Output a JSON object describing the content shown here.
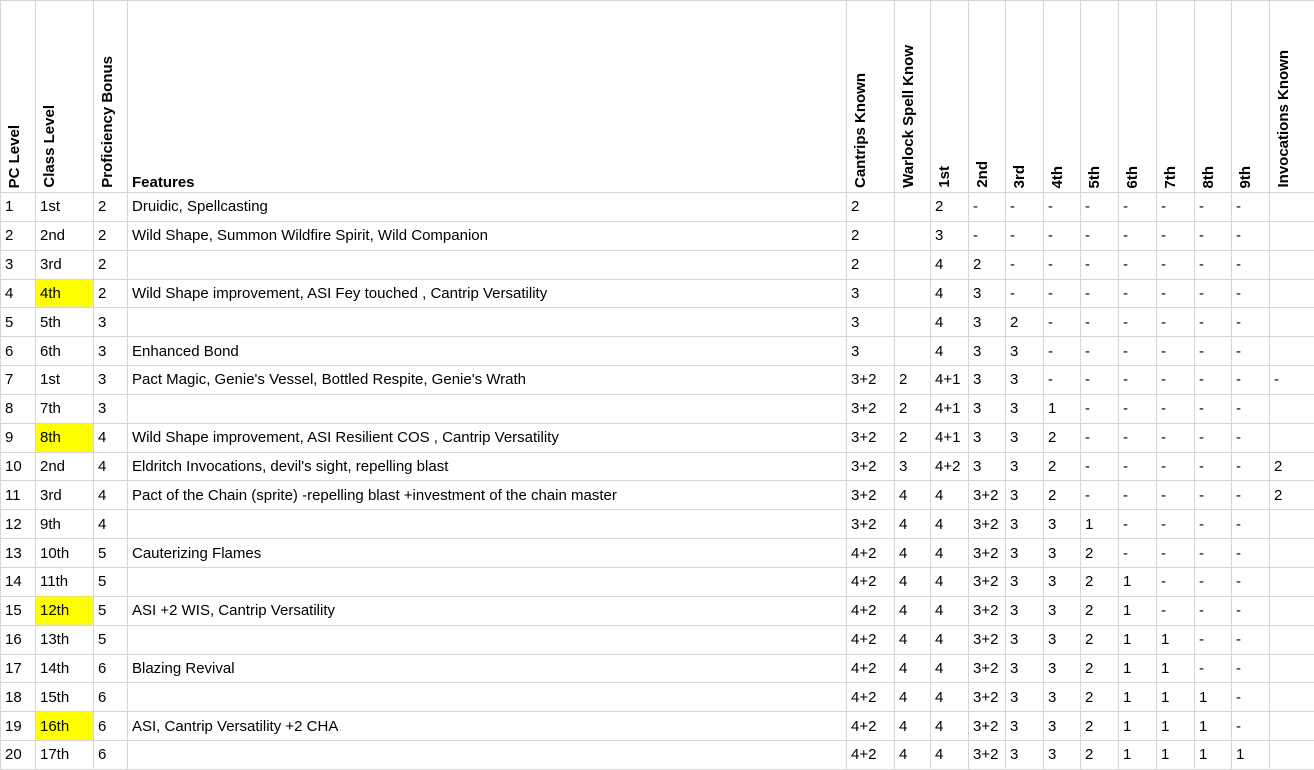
{
  "colors": {
    "highlight": "#ffff00",
    "gridline": "#d6d6d6",
    "text": "#000000",
    "background": "#ffffff"
  },
  "table": {
    "columns": [
      {
        "key": "pc-level",
        "label": "PC Level",
        "vertical": true
      },
      {
        "key": "class-level",
        "label": "Class Level",
        "vertical": true
      },
      {
        "key": "proficiency",
        "label": "Proficiency Bonus",
        "vertical": true
      },
      {
        "key": "features",
        "label": "Features",
        "vertical": false
      },
      {
        "key": "cantrips-known",
        "label": "Cantrips Known",
        "vertical": true
      },
      {
        "key": "warlock-spells",
        "label": "Warlock Spell Know",
        "vertical": true
      },
      {
        "key": "slot-1st",
        "label": "1st",
        "vertical": true
      },
      {
        "key": "slot-2nd",
        "label": "2nd",
        "vertical": true
      },
      {
        "key": "slot-3rd",
        "label": "3rd",
        "vertical": true
      },
      {
        "key": "slot-4th",
        "label": "4th",
        "vertical": true
      },
      {
        "key": "slot-5th",
        "label": "5th",
        "vertical": true
      },
      {
        "key": "slot-6th",
        "label": "6th",
        "vertical": true
      },
      {
        "key": "slot-7th",
        "label": "7th",
        "vertical": true
      },
      {
        "key": "slot-8th",
        "label": "8th",
        "vertical": true
      },
      {
        "key": "slot-9th",
        "label": "9th",
        "vertical": true
      },
      {
        "key": "invocations",
        "label": "Invocations Known",
        "vertical": true
      }
    ],
    "rows": [
      {
        "highlight": false,
        "cells": [
          "1",
          "1st",
          "2",
          "Druidic, Spellcasting",
          "2",
          "",
          "2",
          "-",
          "-",
          "-",
          "-",
          "-",
          "-",
          "-",
          "-",
          ""
        ]
      },
      {
        "highlight": false,
        "cells": [
          "2",
          "2nd",
          "2",
          "Wild Shape, Summon Wildfire Spirit, Wild Companion",
          "2",
          "",
          "3",
          "-",
          "-",
          "-",
          "-",
          "-",
          "-",
          "-",
          "-",
          ""
        ]
      },
      {
        "highlight": false,
        "cells": [
          "3",
          "3rd",
          "2",
          "",
          "2",
          "",
          "4",
          "2",
          "-",
          "-",
          "-",
          "-",
          "-",
          "-",
          "-",
          ""
        ]
      },
      {
        "highlight": true,
        "cells": [
          "4",
          "4th",
          "2",
          "Wild Shape improvement, ASI Fey touched , Cantrip Versatility",
          "3",
          "",
          "4",
          "3",
          "-",
          "-",
          "-",
          "-",
          "-",
          "-",
          "-",
          ""
        ]
      },
      {
        "highlight": false,
        "cells": [
          "5",
          "5th",
          "3",
          "",
          "3",
          "",
          "4",
          "3",
          "2",
          "-",
          "-",
          "-",
          "-",
          "-",
          "-",
          ""
        ]
      },
      {
        "highlight": false,
        "cells": [
          "6",
          "6th",
          "3",
          "Enhanced Bond",
          "3",
          "",
          "4",
          "3",
          "3",
          "-",
          "-",
          "-",
          "-",
          "-",
          "-",
          ""
        ]
      },
      {
        "highlight": false,
        "cells": [
          "7",
          "1st",
          "3",
          "Pact Magic, Genie's Vessel, Bottled Respite, Genie's Wrath",
          "3+2",
          "2",
          "4+1",
          "3",
          "3",
          "-",
          "-",
          "-",
          "-",
          "-",
          "-",
          "-"
        ]
      },
      {
        "highlight": false,
        "cells": [
          "8",
          "7th",
          "3",
          "",
          "3+2",
          "2",
          "4+1",
          "3",
          "3",
          "1",
          "-",
          "-",
          "-",
          "-",
          "-",
          ""
        ]
      },
      {
        "highlight": true,
        "cells": [
          "9",
          "8th",
          "4",
          "Wild Shape improvement, ASI Resilient COS  , Cantrip Versatility",
          "3+2",
          "2",
          "4+1",
          "3",
          "3",
          "2",
          "-",
          "-",
          "-",
          "-",
          "-",
          ""
        ]
      },
      {
        "highlight": false,
        "cells": [
          "10",
          "2nd",
          "4",
          "Eldritch Invocations, devil's sight, repelling blast",
          "3+2",
          "3",
          "4+2",
          "3",
          "3",
          "2",
          "-",
          "-",
          "-",
          "-",
          "-",
          "2"
        ]
      },
      {
        "highlight": false,
        "cells": [
          "11",
          "3rd",
          "4",
          "Pact of the Chain (sprite) -repelling blast +investment of the chain master",
          "3+2",
          "4",
          "4",
          "3+2",
          "3",
          "2",
          "-",
          "-",
          "-",
          "-",
          "-",
          "2"
        ]
      },
      {
        "highlight": false,
        "cells": [
          "12",
          "9th",
          "4",
          "",
          "3+2",
          "4",
          "4",
          "3+2",
          "3",
          "3",
          "1",
          "-",
          "-",
          "-",
          "-",
          ""
        ]
      },
      {
        "highlight": false,
        "cells": [
          "13",
          "10th",
          "5",
          "Cauterizing Flames",
          "4+2",
          "4",
          "4",
          "3+2",
          "3",
          "3",
          "2",
          "-",
          "-",
          "-",
          "-",
          ""
        ]
      },
      {
        "highlight": false,
        "cells": [
          "14",
          "11th",
          "5",
          "",
          "4+2",
          "4",
          "4",
          "3+2",
          "3",
          "3",
          "2",
          "1",
          "-",
          "-",
          "-",
          ""
        ]
      },
      {
        "highlight": true,
        "cells": [
          "15",
          "12th",
          "5",
          "ASI +2 WIS, Cantrip Versatility",
          "4+2",
          "4",
          "4",
          "3+2",
          "3",
          "3",
          "2",
          "1",
          "-",
          "-",
          "-",
          ""
        ]
      },
      {
        "highlight": false,
        "cells": [
          "16",
          "13th",
          "5",
          "",
          "4+2",
          "4",
          "4",
          "3+2",
          "3",
          "3",
          "2",
          "1",
          "1",
          "-",
          "-",
          ""
        ]
      },
      {
        "highlight": false,
        "cells": [
          "17",
          "14th",
          "6",
          "Blazing Revival",
          "4+2",
          "4",
          "4",
          "3+2",
          "3",
          "3",
          "2",
          "1",
          "1",
          "-",
          "-",
          ""
        ]
      },
      {
        "highlight": false,
        "cells": [
          "18",
          "15th",
          "6",
          "",
          "4+2",
          "4",
          "4",
          "3+2",
          "3",
          "3",
          "2",
          "1",
          "1",
          "1",
          "-",
          ""
        ]
      },
      {
        "highlight": true,
        "cells": [
          "19",
          "16th",
          "6",
          "ASI, Cantrip Versatility +2 CHA",
          "4+2",
          "4",
          "4",
          "3+2",
          "3",
          "3",
          "2",
          "1",
          "1",
          "1",
          "-",
          ""
        ]
      },
      {
        "highlight": false,
        "cells": [
          "20",
          "17th",
          "6",
          "",
          "4+2",
          "4",
          "4",
          "3+2",
          "3",
          "3",
          "2",
          "1",
          "1",
          "1",
          "1",
          ""
        ]
      }
    ]
  }
}
